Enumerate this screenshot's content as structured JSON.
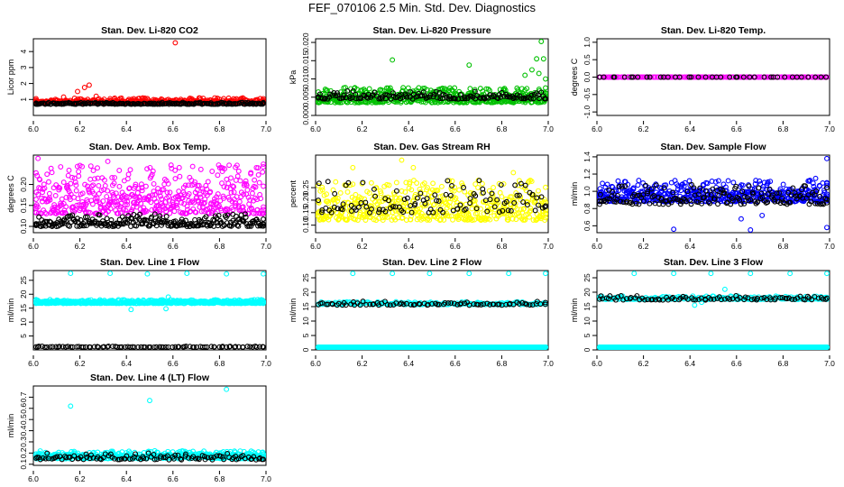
{
  "title": "FEF_070106  2.5 Min. Std. Dev. Diagnostics",
  "colors": {
    "red": "#ff0000",
    "green": "#00c000",
    "magenta": "#ff00ff",
    "yellow": "#ffff00",
    "blue": "#0000ff",
    "cyan": "#00ffff",
    "black": "#000000"
  },
  "chart_data": [
    {
      "type": "scatter",
      "title": "Stan. Dev. Li-820 CO2",
      "ylabel": "Licor ppm",
      "xlim": [
        6.0,
        7.0
      ],
      "ylim": [
        0.0,
        4.8
      ],
      "xticks": [
        "6.0",
        "6.2",
        "6.4",
        "6.6",
        "6.8",
        "7.0"
      ],
      "yticks": [
        {
          "v": 1,
          "t": "1"
        },
        {
          "v": 2,
          "t": "2"
        },
        {
          "v": 3,
          "t": "3"
        },
        {
          "v": 4,
          "t": "4"
        }
      ],
      "series": [
        {
          "color": "#ff0000",
          "base": 0.75,
          "spread": 0.35,
          "n": 420,
          "outliers": [
            [
              6.61,
              4.55
            ],
            [
              6.22,
              1.75
            ],
            [
              6.24,
              1.9
            ],
            [
              6.19,
              1.5
            ],
            [
              6.27,
              1.2
            ],
            [
              6.45,
              1.05
            ],
            [
              6.58,
              1.0
            ],
            [
              6.68,
              1.05
            ],
            [
              6.78,
              1.1
            ],
            [
              6.13,
              1.15
            ],
            [
              6.33,
              1.05
            ],
            [
              6.9,
              1.1
            ]
          ]
        },
        {
          "color": "#000000",
          "base": 0.7,
          "spread": 0.12,
          "n": 200,
          "outliers": []
        }
      ]
    },
    {
      "type": "scatter",
      "title": "Stan. Dev. Li-820 Pressure",
      "ylabel": "kPa",
      "xlim": [
        6.0,
        7.0
      ],
      "ylim": [
        0.0,
        0.021
      ],
      "xticks": [
        "6.0",
        "6.2",
        "6.4",
        "6.6",
        "6.8",
        "7.0"
      ],
      "yticks": [
        {
          "v": 0.0,
          "t": "0.000"
        },
        {
          "v": 0.005,
          "t": "0.005"
        },
        {
          "v": 0.01,
          "t": "0.010"
        },
        {
          "v": 0.015,
          "t": "0.015"
        },
        {
          "v": 0.02,
          "t": "0.020"
        }
      ],
      "series": [
        {
          "color": "#00c000",
          "base": 0.0035,
          "spread": 0.0042,
          "n": 520,
          "outliers": [
            [
              6.33,
              0.0152
            ],
            [
              6.66,
              0.0138
            ],
            [
              6.97,
              0.0205
            ],
            [
              6.95,
              0.0155
            ],
            [
              6.98,
              0.0155
            ],
            [
              6.93,
              0.0125
            ],
            [
              6.9,
              0.011
            ],
            [
              6.96,
              0.0115
            ],
            [
              6.99,
              0.01
            ]
          ]
        },
        {
          "color": "#000000",
          "base": 0.0045,
          "spread": 0.0022,
          "n": 150,
          "outliers": []
        }
      ]
    },
    {
      "type": "scatter",
      "title": "Stan. Dev. Li-820 Temp.",
      "ylabel": "degrees C",
      "xlim": [
        6.0,
        7.0
      ],
      "ylim": [
        -1.1,
        1.1
      ],
      "xticks": [
        "6.0",
        "6.2",
        "6.4",
        "6.6",
        "6.8",
        "7.0"
      ],
      "yticks": [
        {
          "v": -1,
          "t": "-1.0"
        },
        {
          "v": -0.5,
          "t": "-0.5"
        },
        {
          "v": 0,
          "t": "0.0"
        },
        {
          "v": 0.5,
          "t": "0.5"
        },
        {
          "v": 1,
          "t": "1.0"
        }
      ],
      "series": [
        {
          "color": "#ff00ff",
          "base": 0.0,
          "spread": 0.0,
          "n": 160,
          "outliers": []
        },
        {
          "color": "#000000",
          "base": 0.0,
          "spread": 0.0,
          "n": 40,
          "outliers": []
        }
      ]
    },
    {
      "type": "scatter",
      "title": "Stan. Dev. Amb. Box Temp.",
      "ylabel": "degrees C",
      "xlim": [
        6.0,
        7.0
      ],
      "ylim": [
        0.085,
        0.27
      ],
      "xticks": [
        "6.0",
        "6.2",
        "6.4",
        "6.6",
        "6.8",
        "7.0"
      ],
      "yticks": [
        {
          "v": 0.1,
          "t": "0.10"
        },
        {
          "v": 0.15,
          "t": "0.15"
        },
        {
          "v": 0.2,
          "t": "0.20"
        }
      ],
      "series": [
        {
          "color": "#ff00ff",
          "base": 0.13,
          "spread": 0.12,
          "n": 520,
          "outliers": [
            [
              6.02,
              0.262
            ],
            [
              6.32,
              0.255
            ]
          ]
        },
        {
          "color": "#000000",
          "base": 0.1,
          "spread": 0.03,
          "n": 260,
          "outliers": []
        }
      ]
    },
    {
      "type": "scatter",
      "title": "Stan. Dev. Gas Stream RH",
      "ylabel": "percent",
      "xlim": [
        6.0,
        7.0
      ],
      "ylim": [
        0.07,
        0.38
      ],
      "xticks": [
        "6.0",
        "6.2",
        "6.4",
        "6.6",
        "6.8",
        "7.0"
      ],
      "yticks": [
        {
          "v": 0.1,
          "t": "0.10"
        },
        {
          "v": 0.15,
          "t": "0.15"
        },
        {
          "v": 0.2,
          "t": "0.20"
        },
        {
          "v": 0.25,
          "t": "0.25"
        }
      ],
      "series": [
        {
          "color": "#ffff00",
          "base": 0.12,
          "spread": 0.16,
          "n": 520,
          "outliers": [
            [
              6.16,
              0.33
            ],
            [
              6.37,
              0.36
            ],
            [
              6.42,
              0.33
            ],
            [
              6.85,
              0.31
            ]
          ]
        },
        {
          "color": "#000000",
          "base": 0.15,
          "spread": 0.13,
          "n": 110,
          "outliers": []
        }
      ]
    },
    {
      "type": "scatter",
      "title": "Stan. Dev. Sample Flow",
      "ylabel": "ml/min",
      "xlim": [
        6.0,
        7.0
      ],
      "ylim": [
        0.52,
        1.42
      ],
      "xticks": [
        "6.0",
        "6.2",
        "6.4",
        "6.6",
        "6.8",
        "7.0"
      ],
      "yticks": [
        {
          "v": 0.6,
          "t": "0.6"
        },
        {
          "v": 0.8,
          "t": "0.8"
        },
        {
          "v": 1.0,
          "t": "1.0"
        },
        {
          "v": 1.2,
          "t": "1.2"
        },
        {
          "v": 1.4,
          "t": "1.4"
        }
      ],
      "series": [
        {
          "color": "#0000ff",
          "base": 0.88,
          "spread": 0.25,
          "n": 520,
          "outliers": [
            [
              6.33,
              0.56
            ],
            [
              6.66,
              0.55
            ],
            [
              6.99,
              1.38
            ],
            [
              6.94,
              1.15
            ],
            [
              6.99,
              0.58
            ],
            [
              6.62,
              0.68
            ],
            [
              6.71,
              0.72
            ]
          ]
        },
        {
          "color": "#000000",
          "base": 0.85,
          "spread": 0.23,
          "n": 170,
          "outliers": []
        }
      ]
    },
    {
      "type": "scatter",
      "title": "Stan. Dev. Line 1 Flow",
      "ylabel": "ml/min",
      "xlim": [
        6.0,
        7.0
      ],
      "ylim": [
        0.0,
        28.5
      ],
      "xticks": [
        "6.0",
        "6.2",
        "6.4",
        "6.6",
        "6.8",
        "7.0"
      ],
      "yticks": [
        {
          "v": 5,
          "t": "5"
        },
        {
          "v": 10,
          "t": "10"
        },
        {
          "v": 15,
          "t": "15"
        },
        {
          "v": 20,
          "t": "20"
        },
        {
          "v": 25,
          "t": "25"
        }
      ],
      "series": [
        {
          "color": "#00ffff",
          "base": 16.7,
          "spread": 1.4,
          "n": 520,
          "outliers": [
            [
              6.16,
              27.5
            ],
            [
              6.33,
              27.5
            ],
            [
              6.49,
              27.3
            ],
            [
              6.66,
              27.5
            ],
            [
              6.83,
              27.3
            ],
            [
              6.99,
              27.3
            ],
            [
              6.42,
              14.5
            ],
            [
              6.57,
              14.8
            ],
            [
              6.58,
              19
            ]
          ]
        },
        {
          "color": "#000000",
          "base": 1.0,
          "spread": 0.3,
          "n": 90,
          "outliers": []
        }
      ]
    },
    {
      "type": "scatter",
      "title": "Stan. Dev. Line 2 Flow",
      "ylabel": "ml/min",
      "xlim": [
        6.0,
        7.0
      ],
      "ylim": [
        0.0,
        27.5
      ],
      "xticks": [
        "6.0",
        "6.2",
        "6.4",
        "6.6",
        "6.8",
        "7.0"
      ],
      "yticks": [
        {
          "v": 0,
          "t": "0"
        },
        {
          "v": 5,
          "t": "5"
        },
        {
          "v": 10,
          "t": "10"
        },
        {
          "v": 15,
          "t": "15"
        },
        {
          "v": 20,
          "t": "20"
        },
        {
          "v": 25,
          "t": "25"
        }
      ],
      "series": [
        {
          "color": "#00ffff",
          "base": 0.3,
          "spread": 0.5,
          "n": 420,
          "outliers": [
            [
              6.16,
              26.5
            ],
            [
              6.33,
              26.5
            ],
            [
              6.49,
              26.5
            ],
            [
              6.66,
              26.5
            ],
            [
              6.83,
              26.5
            ],
            [
              6.99,
              26.5
            ]
          ]
        },
        {
          "color": "#00ffff",
          "base": 15.7,
          "spread": 1.0,
          "n": 200,
          "outliers": []
        },
        {
          "color": "#000000",
          "base": 15.5,
          "spread": 1.4,
          "n": 85,
          "outliers": []
        }
      ]
    },
    {
      "type": "scatter",
      "title": "Stan. Dev. Line 3 Flow",
      "ylabel": "ml/min",
      "xlim": [
        6.0,
        7.0
      ],
      "ylim": [
        0.0,
        27.5
      ],
      "xticks": [
        "6.0",
        "6.2",
        "6.4",
        "6.6",
        "6.8",
        "7.0"
      ],
      "yticks": [
        {
          "v": 0,
          "t": "0"
        },
        {
          "v": 5,
          "t": "5"
        },
        {
          "v": 10,
          "t": "10"
        },
        {
          "v": 15,
          "t": "15"
        },
        {
          "v": 20,
          "t": "20"
        },
        {
          "v": 25,
          "t": "25"
        }
      ],
      "series": [
        {
          "color": "#00ffff",
          "base": 0.3,
          "spread": 0.5,
          "n": 420,
          "outliers": [
            [
              6.16,
              26.5
            ],
            [
              6.33,
              26.5
            ],
            [
              6.49,
              26.5
            ],
            [
              6.66,
              26.5
            ],
            [
              6.83,
              26.5
            ],
            [
              6.99,
              26.5
            ],
            [
              6.42,
              15.5
            ],
            [
              6.45,
              16.5
            ],
            [
              6.55,
              21
            ]
          ]
        },
        {
          "color": "#00ffff",
          "base": 17.5,
          "spread": 1.2,
          "n": 220,
          "outliers": []
        },
        {
          "color": "#000000",
          "base": 17.3,
          "spread": 1.5,
          "n": 90,
          "outliers": []
        }
      ]
    },
    {
      "type": "scatter",
      "title": "Stan. Dev. Line 4 (LT) Flow",
      "ylabel": "ml/min",
      "xlim": [
        6.0,
        7.0
      ],
      "ylim": [
        0.09,
        0.8
      ],
      "xticks": [
        "6.0",
        "6.2",
        "6.4",
        "6.6",
        "6.8",
        "7.0"
      ],
      "yticks": [
        {
          "v": 0.1,
          "t": "0.1"
        },
        {
          "v": 0.2,
          "t": "0.2"
        },
        {
          "v": 0.3,
          "t": "0.3"
        },
        {
          "v": 0.4,
          "t": "0.4"
        },
        {
          "v": 0.5,
          "t": "0.5"
        },
        {
          "v": 0.6,
          "t": "0.6"
        },
        {
          "v": 0.7,
          "t": "0.7"
        }
      ],
      "series": [
        {
          "color": "#00ffff",
          "base": 0.15,
          "spread": 0.07,
          "n": 520,
          "outliers": [
            [
              6.16,
              0.62
            ],
            [
              6.5,
              0.67
            ],
            [
              6.83,
              0.77
            ]
          ]
        },
        {
          "color": "#000000",
          "base": 0.14,
          "spread": 0.06,
          "n": 110,
          "outliers": []
        }
      ]
    }
  ]
}
